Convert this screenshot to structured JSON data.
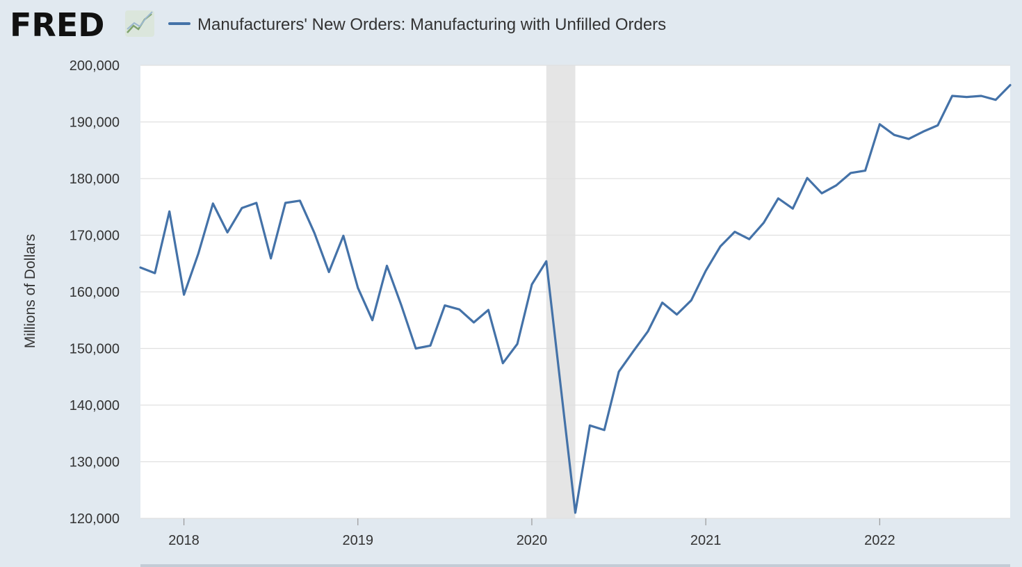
{
  "header": {
    "logo_text": "FRED",
    "logo_icon": "chart-line-icon"
  },
  "chart_data": {
    "type": "line",
    "title": "Manufacturers' New Orders: Manufacturing with Unfilled Orders",
    "xlabel": "",
    "ylabel": "Millions of Dollars",
    "xlim": [
      "2017-10",
      "2022-10"
    ],
    "ylim": [
      120000,
      200000
    ],
    "grid": true,
    "legend_position": "top",
    "y_ticks": [
      120000,
      130000,
      140000,
      150000,
      160000,
      170000,
      180000,
      190000,
      200000
    ],
    "y_tick_labels": [
      "120,000",
      "130,000",
      "140,000",
      "150,000",
      "160,000",
      "170,000",
      "180,000",
      "190,000",
      "200,000"
    ],
    "x_ticks": [
      "2018-01",
      "2019-01",
      "2020-01",
      "2021-01",
      "2022-01"
    ],
    "x_tick_labels": [
      "2018",
      "2019",
      "2020",
      "2021",
      "2022"
    ],
    "recession": {
      "start": "2020-02",
      "end": "2020-04"
    },
    "colors": {
      "series": "#4472a8",
      "recession": "#e5e5e5",
      "background": "#e1e9f0",
      "plot": "#ffffff",
      "grid": "#e0e0e0"
    },
    "series": [
      {
        "name": "Manufacturers' New Orders: Manufacturing with Unfilled Orders",
        "x": [
          "2017-10",
          "2017-11",
          "2017-12",
          "2018-01",
          "2018-02",
          "2018-03",
          "2018-04",
          "2018-05",
          "2018-06",
          "2018-07",
          "2018-08",
          "2018-09",
          "2018-10",
          "2018-11",
          "2018-12",
          "2019-01",
          "2019-02",
          "2019-03",
          "2019-04",
          "2019-05",
          "2019-06",
          "2019-07",
          "2019-08",
          "2019-09",
          "2019-10",
          "2019-11",
          "2019-12",
          "2020-01",
          "2020-02",
          "2020-03",
          "2020-04",
          "2020-05",
          "2020-06",
          "2020-07",
          "2020-08",
          "2020-09",
          "2020-10",
          "2020-11",
          "2020-12",
          "2021-01",
          "2021-02",
          "2021-03",
          "2021-04",
          "2021-05",
          "2021-06",
          "2021-07",
          "2021-08",
          "2021-09",
          "2021-10",
          "2021-11",
          "2021-12",
          "2022-01",
          "2022-02",
          "2022-03",
          "2022-04",
          "2022-05",
          "2022-06",
          "2022-07",
          "2022-08",
          "2022-09",
          "2022-10"
        ],
        "values": [
          164300,
          163300,
          174200,
          159500,
          166800,
          175600,
          170500,
          174800,
          175700,
          165900,
          175700,
          176100,
          170400,
          163500,
          169900,
          160700,
          155000,
          164600,
          157600,
          150000,
          150500,
          157600,
          156900,
          154600,
          156800,
          147400,
          150800,
          161300,
          165400,
          143200,
          121000,
          136400,
          135600,
          145900,
          149500,
          153000,
          158100,
          156000,
          158500,
          163700,
          168000,
          170600,
          169300,
          172200,
          176500,
          174700,
          180100,
          177400,
          178800,
          181000,
          181400,
          189600,
          187700,
          187000,
          188300,
          189400,
          194600,
          194400,
          194600,
          193900,
          196500
        ]
      }
    ]
  }
}
